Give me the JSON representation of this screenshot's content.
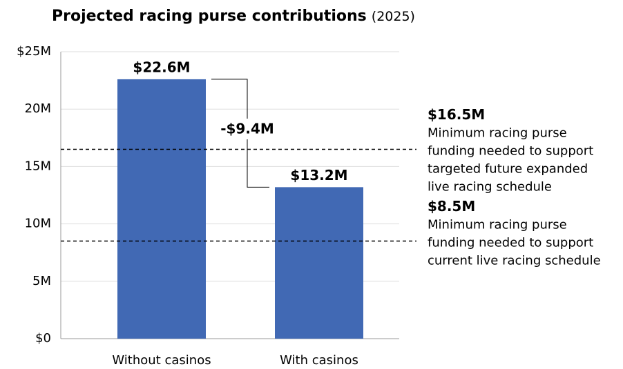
{
  "chart_data": {
    "type": "bar",
    "title": "Projected racing purse contributions",
    "subtitle": "(2025)",
    "categories": [
      "Without casinos",
      "With casinos"
    ],
    "values": [
      22.6,
      13.2
    ],
    "value_labels": [
      "$22.6M",
      "$13.2M"
    ],
    "color": "#4169b4",
    "ylim": [
      0,
      25
    ],
    "yticks": [
      {
        "value": 0,
        "label": "$0"
      },
      {
        "value": 5,
        "label": "5M"
      },
      {
        "value": 10,
        "label": "10M"
      },
      {
        "value": 15,
        "label": "15M"
      },
      {
        "value": 20,
        "label": "20M"
      },
      {
        "value": 25,
        "label": "$25M"
      }
    ],
    "grid": true,
    "difference": {
      "value": -9.4,
      "label": "-$9.4M"
    },
    "reference_lines": [
      {
        "value": 16.5,
        "label": "$16.5M",
        "text": [
          "Minimum racing purse",
          "funding needed to support",
          "targeted future expanded",
          "live racing schedule"
        ]
      },
      {
        "value": 8.5,
        "label": "$8.5M",
        "text": [
          "Minimum racing purse",
          "funding needed to support",
          "current live racing schedule"
        ]
      }
    ]
  }
}
